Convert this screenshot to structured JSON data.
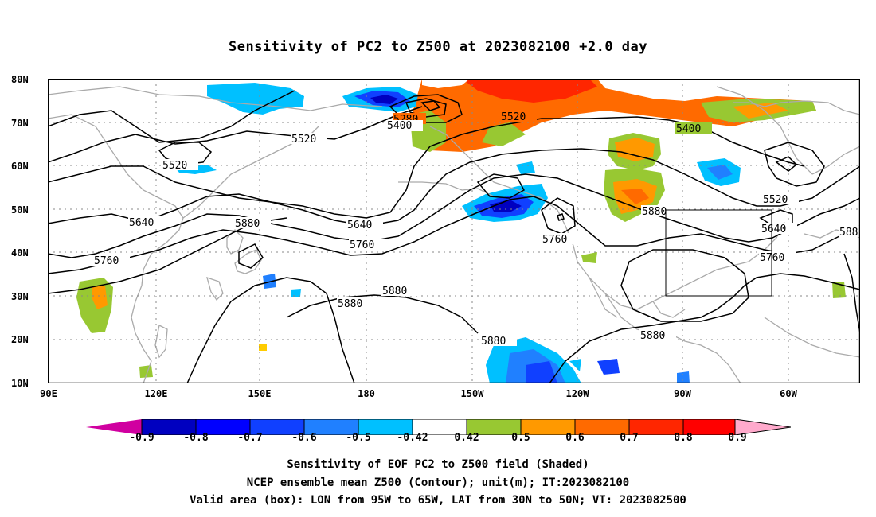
{
  "title": "Sensitivity of PC2 to Z500 at 2023082100 +2.0 day",
  "lat_labels": [
    "80N",
    "70N",
    "60N",
    "50N",
    "40N",
    "30N",
    "20N",
    "10N"
  ],
  "lon_labels": [
    "90E",
    "120E",
    "150E",
    "180",
    "150W",
    "120W",
    "90W",
    "60W"
  ],
  "contour_labels": [
    "5280",
    "5400",
    "5520",
    "5520",
    "5400",
    "5520",
    "5520",
    "5640",
    "5640",
    "5640",
    "5760",
    "5760",
    "5760",
    "5760",
    "5880",
    "5880",
    "5880",
    "5880",
    "5880",
    "5880",
    "588"
  ],
  "colorbar": {
    "labels": [
      "-0.9",
      "-0.8",
      "-0.7",
      "-0.6",
      "-0.5",
      "-0.42",
      "0.42",
      "0.5",
      "0.6",
      "0.7",
      "0.8",
      "0.9"
    ],
    "colors": [
      "#d000a0",
      "#0000c0",
      "#0000ff",
      "#1040ff",
      "#2080ff",
      "#00c0ff",
      "#ffffff",
      "#98c832",
      "#ff9900",
      "#ff6a00",
      "#ff2600",
      "#ff0000",
      "#ffaacc"
    ]
  },
  "captions": [
    "Sensitivity of EOF PC2 to Z500 field (Shaded)",
    "NCEP ensemble mean Z500 (Contour); unit(m); IT:2023082100",
    "Valid area (box): LON from 95W to 65W, LAT from 30N to 50N; VT: 2023082500"
  ],
  "colors": {
    "coast": "#aaaaaa",
    "grid": "#888888",
    "contour": "#000000"
  }
}
